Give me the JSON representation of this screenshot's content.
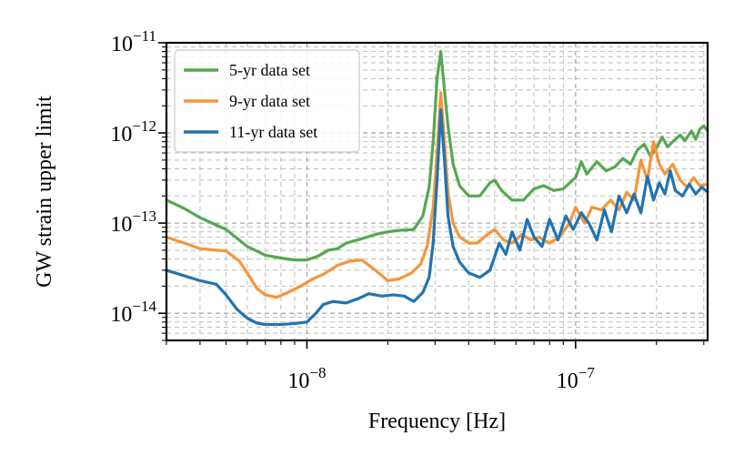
{
  "chart_data": {
    "type": "line",
    "title": "",
    "xlabel": "Frequency [Hz]",
    "ylabel": "GW strain upper limit",
    "xscale": "log",
    "yscale": "log",
    "xlim": [
      3e-09,
      3.1e-07
    ],
    "ylim": [
      5e-15,
      1e-11
    ],
    "grid": true,
    "legend_position": "upper-left",
    "x_tick_labels": [
      {
        "value": 1e-08,
        "base": "10",
        "exp": "−8"
      },
      {
        "value": 1e-07,
        "base": "10",
        "exp": "−7"
      }
    ],
    "y_tick_labels": [
      {
        "value": 1e-11,
        "base": "10",
        "exp": "−11"
      },
      {
        "value": 1e-12,
        "base": "10",
        "exp": "−12"
      },
      {
        "value": 1e-13,
        "base": "10",
        "exp": "−13"
      },
      {
        "value": 1e-14,
        "base": "10",
        "exp": "−14"
      }
    ],
    "series": [
      {
        "name": "5-yr data set",
        "color": "#55a84f",
        "points": [
          [
            3e-09,
            1.8e-13
          ],
          [
            3.5e-09,
            1.45e-13
          ],
          [
            4e-09,
            1.15e-13
          ],
          [
            5e-09,
            8.5e-14
          ],
          [
            6e-09,
            5.5e-14
          ],
          [
            7e-09,
            4.4e-14
          ],
          [
            8e-09,
            4.1e-14
          ],
          [
            9e-09,
            3.9e-14
          ],
          [
            1e-08,
            3.9e-14
          ],
          [
            1.1e-08,
            4.3e-14
          ],
          [
            1.2e-08,
            5e-14
          ],
          [
            1.3e-08,
            5.2e-14
          ],
          [
            1.4e-08,
            6e-14
          ],
          [
            1.6e-08,
            6.7e-14
          ],
          [
            1.8e-08,
            7.5e-14
          ],
          [
            2e-08,
            8e-14
          ],
          [
            2.2e-08,
            8.3e-14
          ],
          [
            2.5e-08,
            8.5e-14
          ],
          [
            2.7e-08,
            1.2e-13
          ],
          [
            2.85e-08,
            2.5e-13
          ],
          [
            2.95e-08,
            8e-13
          ],
          [
            3.05e-08,
            4e-12
          ],
          [
            3.15e-08,
            8e-12
          ],
          [
            3.25e-08,
            3e-12
          ],
          [
            3.35e-08,
            1.2e-12
          ],
          [
            3.5e-08,
            4.5e-13
          ],
          [
            3.7e-08,
            2.6e-13
          ],
          [
            4e-08,
            2e-13
          ],
          [
            4.4e-08,
            2e-13
          ],
          [
            4.8e-08,
            2.8e-13
          ],
          [
            5e-08,
            3e-13
          ],
          [
            5.3e-08,
            2.3e-13
          ],
          [
            5.8e-08,
            1.8e-13
          ],
          [
            6.4e-08,
            1.8e-13
          ],
          [
            7e-08,
            2.4e-13
          ],
          [
            7.6e-08,
            2.6e-13
          ],
          [
            8.3e-08,
            2.3e-13
          ],
          [
            9e-08,
            2.4e-13
          ],
          [
            1e-07,
            3.2e-13
          ],
          [
            1.05e-07,
            4.8e-13
          ],
          [
            1.1e-07,
            3.5e-13
          ],
          [
            1.2e-07,
            4.8e-13
          ],
          [
            1.3e-07,
            3.8e-13
          ],
          [
            1.4e-07,
            4.2e-13
          ],
          [
            1.5e-07,
            5.2e-13
          ],
          [
            1.6e-07,
            4.5e-13
          ],
          [
            1.7e-07,
            6.5e-13
          ],
          [
            1.8e-07,
            7.5e-13
          ],
          [
            1.9e-07,
            5.5e-13
          ],
          [
            2e-07,
            6.8e-13
          ],
          [
            2.1e-07,
            9e-13
          ],
          [
            2.2e-07,
            7e-13
          ],
          [
            2.3e-07,
            8e-13
          ],
          [
            2.45e-07,
            9.5e-13
          ],
          [
            2.55e-07,
            8.2e-13
          ],
          [
            2.7e-07,
            1.05e-12
          ],
          [
            2.8e-07,
            8.5e-13
          ],
          [
            2.9e-07,
            1.1e-12
          ],
          [
            3e-07,
            1.2e-12
          ],
          [
            3.1e-07,
            1.05e-12
          ]
        ]
      },
      {
        "name": "9-yr data set",
        "color": "#f5953a",
        "points": [
          [
            3e-09,
            7e-14
          ],
          [
            3.5e-09,
            6e-14
          ],
          [
            4e-09,
            5.2e-14
          ],
          [
            4.6e-09,
            5e-14
          ],
          [
            5e-09,
            4.9e-14
          ],
          [
            5.6e-09,
            3.8e-14
          ],
          [
            6e-09,
            2.8e-14
          ],
          [
            6.5e-09,
            1.9e-14
          ],
          [
            7e-09,
            1.6e-14
          ],
          [
            7.7e-09,
            1.5e-14
          ],
          [
            8.5e-09,
            1.7e-14
          ],
          [
            9.5e-09,
            2e-14
          ],
          [
            1.05e-08,
            2.4e-14
          ],
          [
            1.15e-08,
            2.7e-14
          ],
          [
            1.3e-08,
            3.4e-14
          ],
          [
            1.45e-08,
            3.8e-14
          ],
          [
            1.6e-08,
            3.9e-14
          ],
          [
            1.8e-08,
            3e-14
          ],
          [
            2e-08,
            2.3e-14
          ],
          [
            2.2e-08,
            2.4e-14
          ],
          [
            2.45e-08,
            2.8e-14
          ],
          [
            2.65e-08,
            3.5e-14
          ],
          [
            2.8e-08,
            5.5e-14
          ],
          [
            2.95e-08,
            1.5e-13
          ],
          [
            3.05e-08,
            6e-13
          ],
          [
            3.15e-08,
            2.8e-12
          ],
          [
            3.25e-08,
            8e-13
          ],
          [
            3.35e-08,
            2.2e-13
          ],
          [
            3.5e-08,
            1e-13
          ],
          [
            3.7e-08,
            7e-14
          ],
          [
            4e-08,
            6e-14
          ],
          [
            4.3e-08,
            6e-14
          ],
          [
            4.7e-08,
            7.5e-14
          ],
          [
            5e-08,
            8.5e-14
          ],
          [
            5.4e-08,
            6.5e-14
          ],
          [
            5.8e-08,
            6e-14
          ],
          [
            6.3e-08,
            7.5e-14
          ],
          [
            6.8e-08,
            6.5e-14
          ],
          [
            7.3e-08,
            7e-14
          ],
          [
            8e-08,
            6e-14
          ],
          [
            8.7e-08,
            7e-14
          ],
          [
            9.5e-08,
            1e-13
          ],
          [
            1e-07,
            1.5e-13
          ],
          [
            1.08e-07,
            1e-13
          ],
          [
            1.15e-07,
            1.5e-13
          ],
          [
            1.25e-07,
            1.4e-13
          ],
          [
            1.35e-07,
            1.8e-13
          ],
          [
            1.45e-07,
            1.4e-13
          ],
          [
            1.55e-07,
            2.2e-13
          ],
          [
            1.65e-07,
            1.8e-13
          ],
          [
            1.75e-07,
            5e-13
          ],
          [
            1.85e-07,
            3e-13
          ],
          [
            1.95e-07,
            8e-13
          ],
          [
            2.05e-07,
            4.5e-13
          ],
          [
            2.15e-07,
            3.5e-13
          ],
          [
            2.3e-07,
            4.5e-13
          ],
          [
            2.45e-07,
            3e-13
          ],
          [
            2.6e-07,
            2.5e-13
          ],
          [
            2.75e-07,
            3.2e-13
          ],
          [
            2.9e-07,
            2.6e-13
          ],
          [
            3.1e-07,
            2.7e-13
          ]
        ]
      },
      {
        "name": "11-yr data set",
        "color": "#2273b0",
        "points": [
          [
            3e-09,
            3e-14
          ],
          [
            3.5e-09,
            2.6e-14
          ],
          [
            4e-09,
            2.3e-14
          ],
          [
            4.6e-09,
            2.1e-14
          ],
          [
            5e-09,
            1.6e-14
          ],
          [
            5.5e-09,
            1.1e-14
          ],
          [
            6e-09,
            8.8e-15
          ],
          [
            6.5e-09,
            7.8e-15
          ],
          [
            7e-09,
            7.5e-15
          ],
          [
            8e-09,
            7.5e-15
          ],
          [
            9e-09,
            7.7e-15
          ],
          [
            1e-08,
            8e-15
          ],
          [
            1.08e-08,
            1e-14
          ],
          [
            1.15e-08,
            1.25e-14
          ],
          [
            1.25e-08,
            1.35e-14
          ],
          [
            1.4e-08,
            1.3e-14
          ],
          [
            1.55e-08,
            1.45e-14
          ],
          [
            1.7e-08,
            1.65e-14
          ],
          [
            1.9e-08,
            1.55e-14
          ],
          [
            2.1e-08,
            1.6e-14
          ],
          [
            2.3e-08,
            1.55e-14
          ],
          [
            2.5e-08,
            1.35e-14
          ],
          [
            2.7e-08,
            1.7e-14
          ],
          [
            2.85e-08,
            2.5e-14
          ],
          [
            2.95e-08,
            6e-14
          ],
          [
            3.05e-08,
            3e-13
          ],
          [
            3.15e-08,
            1.8e-12
          ],
          [
            3.25e-08,
            5e-13
          ],
          [
            3.35e-08,
            1.2e-13
          ],
          [
            3.5e-08,
            5.5e-14
          ],
          [
            3.7e-08,
            3.7e-14
          ],
          [
            4e-08,
            2.8e-14
          ],
          [
            4.4e-08,
            2.5e-14
          ],
          [
            4.8e-08,
            3e-14
          ],
          [
            5.2e-08,
            6e-14
          ],
          [
            5.5e-08,
            4.5e-14
          ],
          [
            5.8e-08,
            8e-14
          ],
          [
            6.2e-08,
            5e-14
          ],
          [
            6.6e-08,
            1.1e-13
          ],
          [
            7e-08,
            7e-14
          ],
          [
            7.5e-08,
            5.5e-14
          ],
          [
            8e-08,
            1.1e-13
          ],
          [
            8.6e-08,
            6.5e-14
          ],
          [
            9.2e-08,
            1.2e-13
          ],
          [
            9.8e-08,
            8.5e-14
          ],
          [
            1.05e-07,
            1.3e-13
          ],
          [
            1.12e-07,
            1e-13
          ],
          [
            1.2e-07,
            6.5e-14
          ],
          [
            1.28e-07,
            1.4e-13
          ],
          [
            1.36e-07,
            8e-14
          ],
          [
            1.45e-07,
            2e-13
          ],
          [
            1.55e-07,
            1.3e-13
          ],
          [
            1.65e-07,
            2.1e-13
          ],
          [
            1.75e-07,
            1.3e-13
          ],
          [
            1.85e-07,
            3.3e-13
          ],
          [
            1.95e-07,
            1.8e-13
          ],
          [
            2.05e-07,
            2.8e-13
          ],
          [
            2.15e-07,
            2.1e-13
          ],
          [
            2.25e-07,
            3.8e-13
          ],
          [
            2.35e-07,
            2.3e-13
          ],
          [
            2.5e-07,
            2e-13
          ],
          [
            2.65e-07,
            2.7e-13
          ],
          [
            2.8e-07,
            2.1e-13
          ],
          [
            2.95e-07,
            2.5e-13
          ],
          [
            3.1e-07,
            2.2e-13
          ]
        ]
      }
    ]
  }
}
